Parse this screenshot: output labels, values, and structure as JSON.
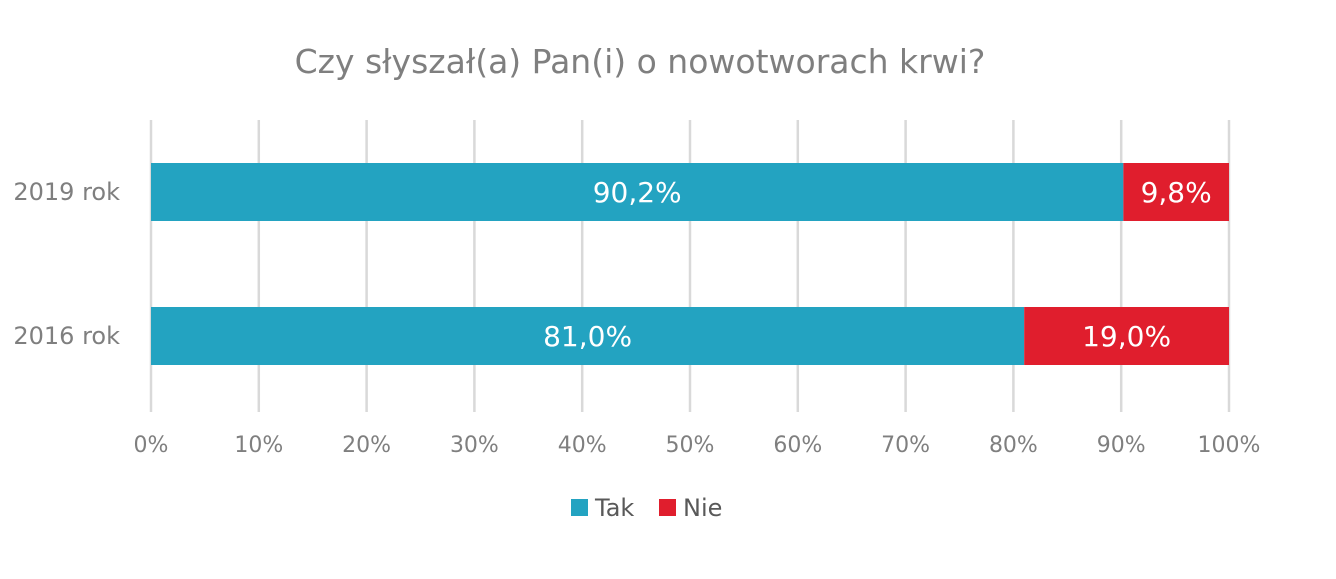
{
  "chart_data": {
    "type": "bar",
    "orientation": "horizontal",
    "stacked": true,
    "title": "Czy słyszał(a) Pan(i) o nowotworach krwi?",
    "xlabel": "",
    "ylabel": "",
    "categories": [
      "2019 rok",
      "2016 rok"
    ],
    "series": [
      {
        "name": "Tak",
        "color": "#23a3c1",
        "values": [
          90.2,
          81.0
        ],
        "labels": [
          "90,2%",
          "81,0%"
        ]
      },
      {
        "name": "Nie",
        "color": "#e01e2d",
        "values": [
          9.8,
          19.0
        ],
        "labels": [
          "9,8%",
          "19,0%"
        ]
      }
    ],
    "xlim": [
      0,
      100
    ],
    "xticks": [
      0,
      10,
      20,
      30,
      40,
      50,
      60,
      70,
      80,
      90,
      100
    ],
    "xtick_labels": [
      "0%",
      "10%",
      "20%",
      "30%",
      "40%",
      "50%",
      "60%",
      "70%",
      "80%",
      "90%",
      "100%"
    ],
    "grid": true,
    "legend_position": "bottom"
  }
}
